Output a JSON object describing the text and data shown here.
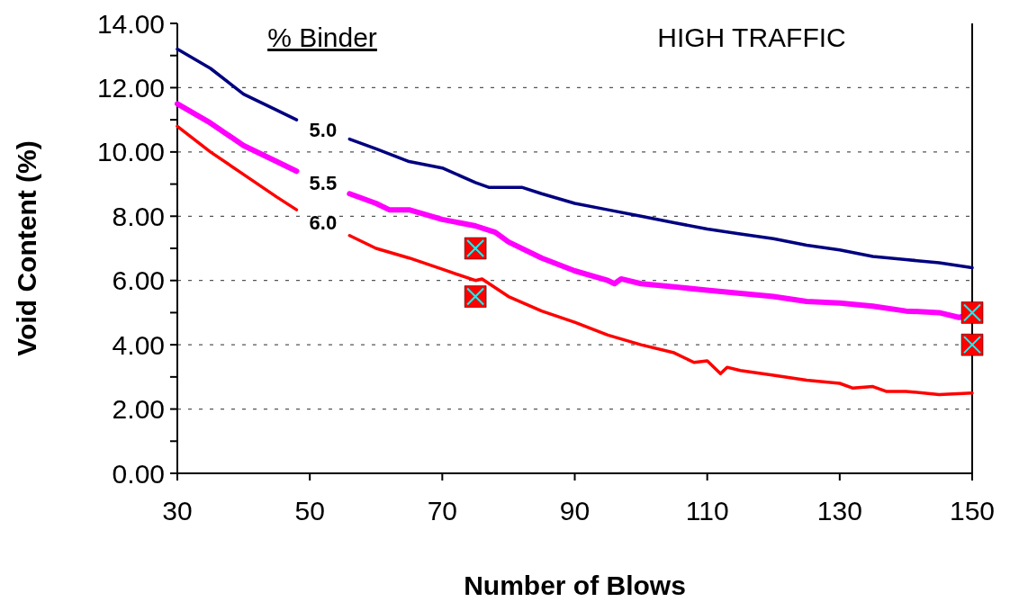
{
  "chart_data": {
    "type": "line",
    "xlabel": "Number of Blows",
    "ylabel": "Void Content (%)",
    "legend_title": "% Binder",
    "annotations": [
      "HIGH TRAFFIC"
    ],
    "xlim": [
      30,
      150
    ],
    "xticks": [
      30,
      50,
      70,
      90,
      110,
      130,
      150
    ],
    "ylim": [
      0,
      14
    ],
    "yticks": [
      {
        "value": 0,
        "label": "0.00"
      },
      {
        "value": 1,
        "label": null
      },
      {
        "value": 2,
        "label": "2.00"
      },
      {
        "value": 3,
        "label": null
      },
      {
        "value": 4,
        "label": "4.00"
      },
      {
        "value": 5,
        "label": null
      },
      {
        "value": 6,
        "label": "6.00"
      },
      {
        "value": 7,
        "label": null
      },
      {
        "value": 8,
        "label": "8.00"
      },
      {
        "value": 9,
        "label": null
      },
      {
        "value": 10,
        "label": "10.00"
      },
      {
        "value": 11,
        "label": null
      },
      {
        "value": 12,
        "label": "12.00"
      },
      {
        "value": 13,
        "label": null
      },
      {
        "value": 14,
        "label": "14.00"
      }
    ],
    "grid": "y",
    "legend": false,
    "series": [
      {
        "name": "5.0",
        "color": "#000080",
        "x": [
          30,
          35,
          40,
          45,
          48,
          52,
          56,
          60,
          65,
          70,
          75,
          77,
          80,
          82,
          85,
          90,
          95,
          100,
          105,
          110,
          115,
          120,
          125,
          130,
          135,
          140,
          145,
          150
        ],
        "values": [
          13.2,
          12.6,
          11.8,
          11.3,
          11.0,
          null,
          10.4,
          10.1,
          9.7,
          9.5,
          9.05,
          8.9,
          8.9,
          8.9,
          8.7,
          8.4,
          8.2,
          8.0,
          7.8,
          7.6,
          7.45,
          7.3,
          7.1,
          6.95,
          6.75,
          6.65,
          6.55,
          6.4
        ]
      },
      {
        "name": "5.5",
        "color": "#ff00ff",
        "x": [
          30,
          35,
          40,
          45,
          48,
          52,
          56,
          60,
          62,
          65,
          70,
          75,
          78,
          80,
          85,
          90,
          95,
          96,
          97,
          100,
          105,
          110,
          115,
          120,
          125,
          130,
          135,
          140,
          145,
          148,
          150
        ],
        "values": [
          11.5,
          10.9,
          10.2,
          9.7,
          9.4,
          null,
          8.7,
          8.4,
          8.2,
          8.2,
          7.9,
          7.7,
          7.5,
          7.2,
          6.7,
          6.3,
          6.0,
          5.9,
          6.05,
          5.9,
          5.8,
          5.7,
          5.6,
          5.5,
          5.35,
          5.3,
          5.2,
          5.05,
          5.0,
          4.85,
          4.95
        ]
      },
      {
        "name": "6.0",
        "color": "#ff0000",
        "x": [
          30,
          35,
          40,
          45,
          48,
          52,
          56,
          60,
          65,
          70,
          75,
          76,
          80,
          85,
          90,
          95,
          100,
          105,
          108,
          110,
          112,
          113,
          115,
          120,
          125,
          130,
          132,
          135,
          137,
          140,
          145,
          150
        ],
        "values": [
          10.8,
          10.0,
          9.3,
          8.6,
          8.2,
          null,
          7.4,
          7.0,
          6.7,
          6.35,
          6.0,
          6.05,
          5.5,
          5.05,
          4.7,
          4.3,
          4.0,
          3.75,
          3.45,
          3.5,
          3.1,
          3.3,
          3.2,
          3.05,
          2.9,
          2.8,
          2.65,
          2.7,
          2.55,
          2.55,
          2.45,
          2.5
        ]
      },
      {
        "type": "scatter",
        "marker": "square",
        "color": "#ff0000",
        "x": [
          75,
          75,
          150,
          150
        ],
        "values": [
          7.0,
          5.5,
          5.0,
          4.0
        ]
      }
    ]
  }
}
